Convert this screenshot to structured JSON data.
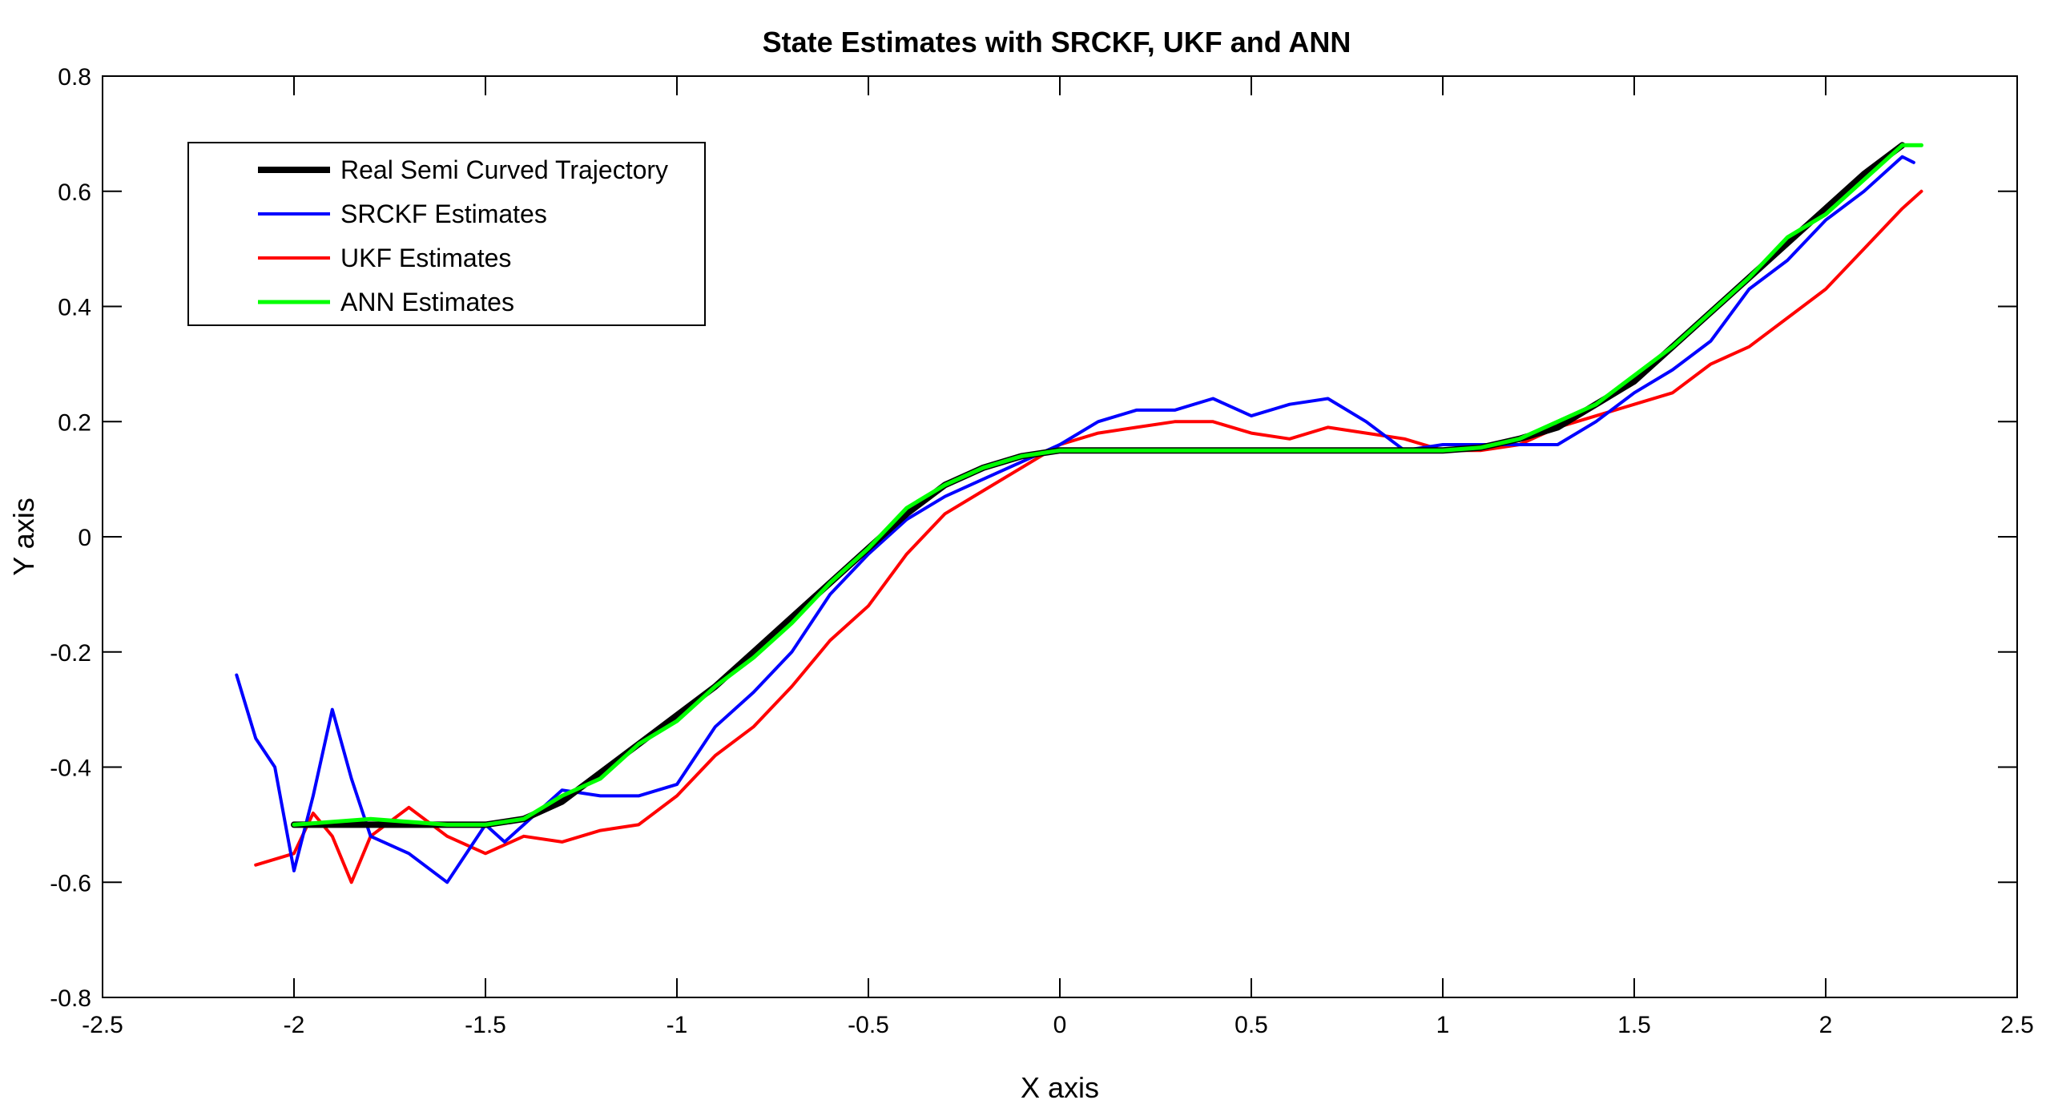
{
  "chart_data": {
    "type": "line",
    "title": "State Estimates with SRCKF, UKF and ANN",
    "xlabel": "X axis",
    "ylabel": "Y axis",
    "xlim": [
      -2.5,
      2.5
    ],
    "ylim": [
      -0.8,
      0.8
    ],
    "xticks": [
      -2.5,
      -2,
      -1.5,
      -1,
      -0.5,
      0,
      0.5,
      1,
      1.5,
      2,
      2.5
    ],
    "yticks": [
      -0.8,
      -0.6,
      -0.4,
      -0.2,
      0,
      0.2,
      0.4,
      0.6,
      0.8
    ],
    "xtick_labels": [
      "-2.5",
      "-2",
      "-1.5",
      "-1",
      "-0.5",
      "0",
      "0.5",
      "1",
      "1.5",
      "2",
      "2.5"
    ],
    "ytick_labels": [
      "-0.8",
      "-0.6",
      "-0.4",
      "-0.2",
      "0",
      "0.2",
      "0.4",
      "0.6",
      "0.8"
    ],
    "grid": false,
    "legend_position": "top-left",
    "series": [
      {
        "name": "Real Semi Curved Trajectory",
        "color": "#000000",
        "x": [
          -2.0,
          -1.8,
          -1.6,
          -1.5,
          -1.4,
          -1.3,
          -1.2,
          -1.1,
          -1.0,
          -0.9,
          -0.8,
          -0.7,
          -0.6,
          -0.5,
          -0.4,
          -0.3,
          -0.2,
          -0.1,
          0.0,
          0.1,
          0.3,
          0.5,
          0.7,
          0.9,
          1.0,
          1.1,
          1.2,
          1.3,
          1.4,
          1.5,
          1.6,
          1.7,
          1.8,
          1.9,
          2.0,
          2.1,
          2.2
        ],
        "y": [
          -0.5,
          -0.5,
          -0.5,
          -0.5,
          -0.49,
          -0.46,
          -0.41,
          -0.36,
          -0.31,
          -0.26,
          -0.2,
          -0.14,
          -0.08,
          -0.02,
          0.04,
          0.09,
          0.12,
          0.14,
          0.15,
          0.15,
          0.15,
          0.15,
          0.15,
          0.15,
          0.15,
          0.155,
          0.17,
          0.19,
          0.23,
          0.27,
          0.33,
          0.39,
          0.45,
          0.51,
          0.57,
          0.63,
          0.68
        ]
      },
      {
        "name": "SRCKF Estimates",
        "color": "#0000ff",
        "x": [
          -2.15,
          -2.1,
          -2.05,
          -2.0,
          -1.95,
          -1.9,
          -1.85,
          -1.8,
          -1.7,
          -1.6,
          -1.5,
          -1.45,
          -1.4,
          -1.3,
          -1.2,
          -1.1,
          -1.0,
          -0.9,
          -0.8,
          -0.7,
          -0.6,
          -0.5,
          -0.4,
          -0.3,
          -0.2,
          -0.1,
          0.0,
          0.1,
          0.2,
          0.3,
          0.4,
          0.5,
          0.6,
          0.7,
          0.8,
          0.9,
          1.0,
          1.1,
          1.2,
          1.3,
          1.4,
          1.5,
          1.6,
          1.7,
          1.8,
          1.9,
          2.0,
          2.1,
          2.2,
          2.23
        ],
        "y": [
          -0.24,
          -0.35,
          -0.4,
          -0.58,
          -0.45,
          -0.3,
          -0.42,
          -0.52,
          -0.55,
          -0.6,
          -0.5,
          -0.53,
          -0.5,
          -0.44,
          -0.45,
          -0.45,
          -0.43,
          -0.33,
          -0.27,
          -0.2,
          -0.1,
          -0.03,
          0.03,
          0.07,
          0.1,
          0.13,
          0.16,
          0.2,
          0.22,
          0.22,
          0.24,
          0.21,
          0.23,
          0.24,
          0.2,
          0.15,
          0.16,
          0.16,
          0.16,
          0.16,
          0.2,
          0.25,
          0.29,
          0.34,
          0.43,
          0.48,
          0.55,
          0.6,
          0.66,
          0.65
        ]
      },
      {
        "name": "UKF Estimates",
        "color": "#ff0000",
        "x": [
          -2.1,
          -2.0,
          -1.95,
          -1.9,
          -1.85,
          -1.8,
          -1.7,
          -1.6,
          -1.5,
          -1.4,
          -1.3,
          -1.2,
          -1.1,
          -1.0,
          -0.9,
          -0.8,
          -0.7,
          -0.6,
          -0.5,
          -0.4,
          -0.3,
          -0.2,
          -0.1,
          0.0,
          0.1,
          0.2,
          0.3,
          0.4,
          0.5,
          0.6,
          0.7,
          0.8,
          0.9,
          1.0,
          1.1,
          1.2,
          1.3,
          1.4,
          1.5,
          1.6,
          1.7,
          1.8,
          1.9,
          2.0,
          2.1,
          2.2,
          2.25
        ],
        "y": [
          -0.57,
          -0.55,
          -0.48,
          -0.52,
          -0.6,
          -0.52,
          -0.47,
          -0.52,
          -0.55,
          -0.52,
          -0.53,
          -0.51,
          -0.5,
          -0.45,
          -0.38,
          -0.33,
          -0.26,
          -0.18,
          -0.12,
          -0.03,
          0.04,
          0.08,
          0.12,
          0.16,
          0.18,
          0.19,
          0.2,
          0.2,
          0.18,
          0.17,
          0.19,
          0.18,
          0.17,
          0.15,
          0.15,
          0.16,
          0.19,
          0.21,
          0.23,
          0.25,
          0.3,
          0.33,
          0.38,
          0.43,
          0.5,
          0.57,
          0.6
        ]
      },
      {
        "name": "ANN Estimates",
        "color": "#00ff00",
        "x": [
          -2.0,
          -1.8,
          -1.6,
          -1.5,
          -1.4,
          -1.3,
          -1.2,
          -1.1,
          -1.0,
          -0.9,
          -0.8,
          -0.7,
          -0.6,
          -0.5,
          -0.4,
          -0.3,
          -0.2,
          -0.1,
          0.0,
          0.1,
          0.3,
          0.5,
          0.7,
          0.9,
          1.0,
          1.1,
          1.2,
          1.3,
          1.4,
          1.5,
          1.6,
          1.7,
          1.8,
          1.9,
          2.0,
          2.1,
          2.2,
          2.25
        ],
        "y": [
          -0.5,
          -0.49,
          -0.5,
          -0.5,
          -0.49,
          -0.45,
          -0.42,
          -0.36,
          -0.32,
          -0.26,
          -0.21,
          -0.15,
          -0.08,
          -0.02,
          0.05,
          0.09,
          0.12,
          0.14,
          0.15,
          0.15,
          0.15,
          0.15,
          0.15,
          0.15,
          0.15,
          0.155,
          0.17,
          0.2,
          0.23,
          0.28,
          0.33,
          0.39,
          0.45,
          0.52,
          0.56,
          0.62,
          0.68,
          0.68
        ]
      }
    ]
  }
}
